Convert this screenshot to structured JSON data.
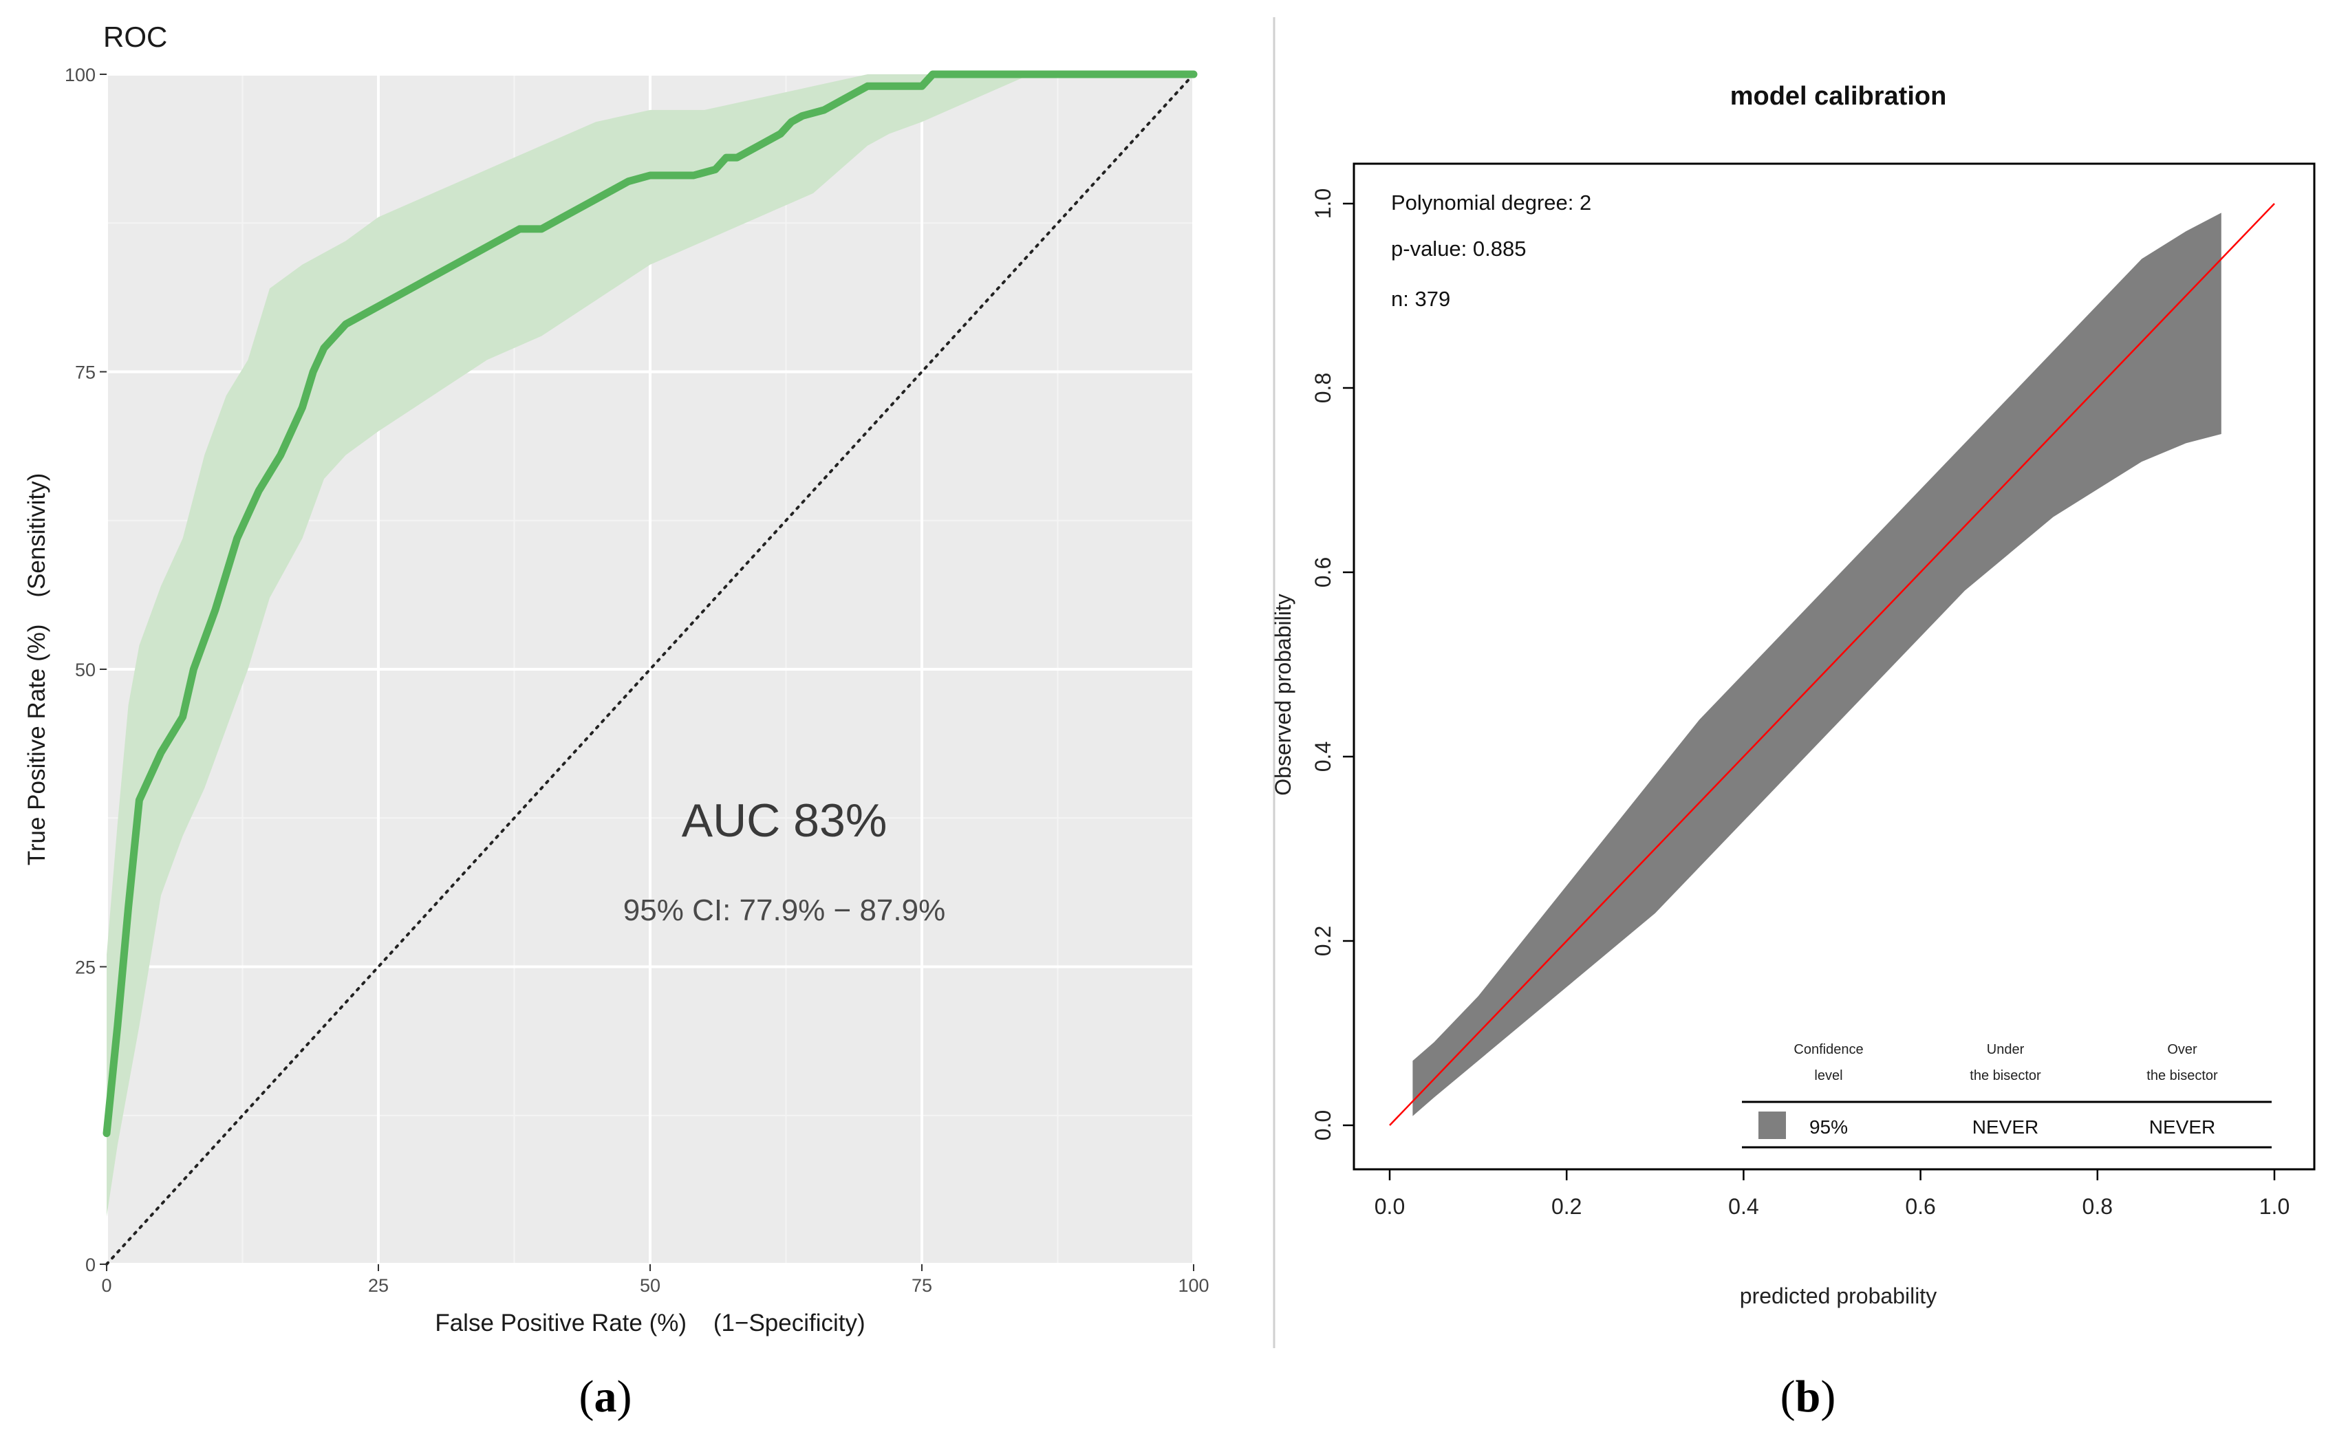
{
  "captions": {
    "a_open": "(",
    "a_letter": "a",
    "a_close": ")",
    "b_open": "(",
    "b_letter": "b",
    "b_close": ")"
  },
  "colors": {
    "roc_line": "#56b35a",
    "roc_band": "#cfe5cc",
    "roc_panel": "#ebebeb",
    "calib_band": "#7f7f7f",
    "calib_line": "#ff0000"
  },
  "chart_data": [
    {
      "type": "line",
      "title": "ROC",
      "xlabel": "False Positive Rate (%)    (1−Specificity)",
      "ylabel": "True Positive Rate (%)    (Sensitivity)",
      "xlim": [
        0,
        100
      ],
      "ylim": [
        0,
        100
      ],
      "xticks": [
        "0",
        "25",
        "50",
        "75",
        "100"
      ],
      "yticks": [
        "0",
        "25",
        "50",
        "75",
        "100"
      ],
      "grid": true,
      "annotations": {
        "auc": "AUC 83%",
        "ci": "95% CI: 77.9% − 87.9%"
      },
      "series": [
        {
          "name": "ROC",
          "x": [
            0,
            1,
            2,
            3,
            5,
            7,
            8,
            10,
            12,
            14,
            16,
            18,
            19,
            20,
            21,
            22,
            24,
            26,
            28,
            30,
            32,
            34,
            36,
            38,
            40,
            42,
            44,
            46,
            48,
            50,
            52,
            54,
            56,
            57,
            58,
            60,
            62,
            63,
            64,
            66,
            68,
            70,
            72,
            74,
            75,
            76,
            80,
            85,
            90,
            100
          ],
          "y": [
            11,
            20,
            30,
            39,
            43,
            46,
            50,
            55,
            61,
            65,
            68,
            72,
            75,
            77,
            78,
            79,
            80,
            81,
            82,
            83,
            84,
            85,
            86,
            87,
            87,
            88,
            89,
            90,
            91,
            91.5,
            91.5,
            91.5,
            92,
            93,
            93,
            94,
            95,
            96,
            96.5,
            97,
            98,
            99,
            99,
            99,
            99,
            100,
            100,
            100,
            100,
            100
          ]
        },
        {
          "name": "95% CI upper",
          "x": [
            0,
            1,
            2,
            3,
            5,
            7,
            9,
            11,
            13,
            15,
            18,
            22,
            25,
            30,
            35,
            40,
            45,
            50,
            55,
            60,
            65,
            70,
            75,
            80,
            85,
            100
          ],
          "y": [
            26,
            37,
            47,
            52,
            57,
            61,
            68,
            73,
            76,
            82,
            84,
            86,
            88,
            90,
            92,
            94,
            96,
            97,
            97,
            98,
            99,
            100,
            100,
            100,
            100,
            100
          ]
        },
        {
          "name": "95% CI lower",
          "x": [
            0,
            1,
            2,
            3,
            5,
            7,
            9,
            11,
            13,
            15,
            18,
            20,
            22,
            25,
            30,
            35,
            40,
            45,
            50,
            55,
            60,
            65,
            70,
            72,
            75,
            80,
            85,
            100
          ],
          "y": [
            4,
            10,
            15,
            20,
            31,
            36,
            40,
            45,
            50,
            56,
            61,
            66,
            68,
            70,
            73,
            76,
            78,
            81,
            84,
            86,
            88,
            90,
            94,
            95,
            96,
            98,
            100,
            100
          ]
        },
        {
          "name": "chance",
          "x": [
            0,
            100
          ],
          "y": [
            0,
            100
          ]
        }
      ]
    },
    {
      "type": "area",
      "title": "model calibration",
      "xlabel": "predicted probability",
      "ylabel": "Observed probability",
      "xlim": [
        0,
        1
      ],
      "ylim": [
        0,
        1
      ],
      "xticks": [
        "0.0",
        "0.2",
        "0.4",
        "0.6",
        "0.8",
        "1.0"
      ],
      "yticks": [
        "0.0",
        "0.2",
        "0.4",
        "0.6",
        "0.8",
        "1.0"
      ],
      "grid": false,
      "info": [
        "Polynomial degree: 2",
        "p-value: 0.885",
        "n: 379"
      ],
      "legend": {
        "headers": [
          [
            "Confidence",
            "level"
          ],
          [
            "Under",
            "the bisector"
          ],
          [
            "Over",
            "the bisector"
          ]
        ],
        "row": [
          "95%",
          "NEVER",
          "NEVER"
        ]
      },
      "series": [
        {
          "name": "bisector",
          "x": [
            0,
            1
          ],
          "y": [
            0,
            1
          ]
        },
        {
          "name": "95% band upper",
          "x": [
            0.026,
            0.05,
            0.1,
            0.15,
            0.2,
            0.25,
            0.3,
            0.35,
            0.4,
            0.45,
            0.5,
            0.55,
            0.6,
            0.65,
            0.7,
            0.75,
            0.8,
            0.85,
            0.9,
            0.94
          ],
          "y": [
            0.07,
            0.09,
            0.14,
            0.2,
            0.26,
            0.32,
            0.38,
            0.44,
            0.49,
            0.54,
            0.59,
            0.64,
            0.69,
            0.74,
            0.79,
            0.84,
            0.89,
            0.94,
            0.97,
            0.99
          ]
        },
        {
          "name": "95% band lower",
          "x": [
            0.026,
            0.05,
            0.1,
            0.15,
            0.2,
            0.25,
            0.3,
            0.35,
            0.4,
            0.45,
            0.5,
            0.55,
            0.6,
            0.65,
            0.7,
            0.75,
            0.8,
            0.85,
            0.9,
            0.94
          ],
          "y": [
            0.01,
            0.03,
            0.07,
            0.11,
            0.15,
            0.19,
            0.23,
            0.28,
            0.33,
            0.38,
            0.43,
            0.48,
            0.53,
            0.58,
            0.62,
            0.66,
            0.69,
            0.72,
            0.74,
            0.75
          ]
        }
      ]
    }
  ]
}
